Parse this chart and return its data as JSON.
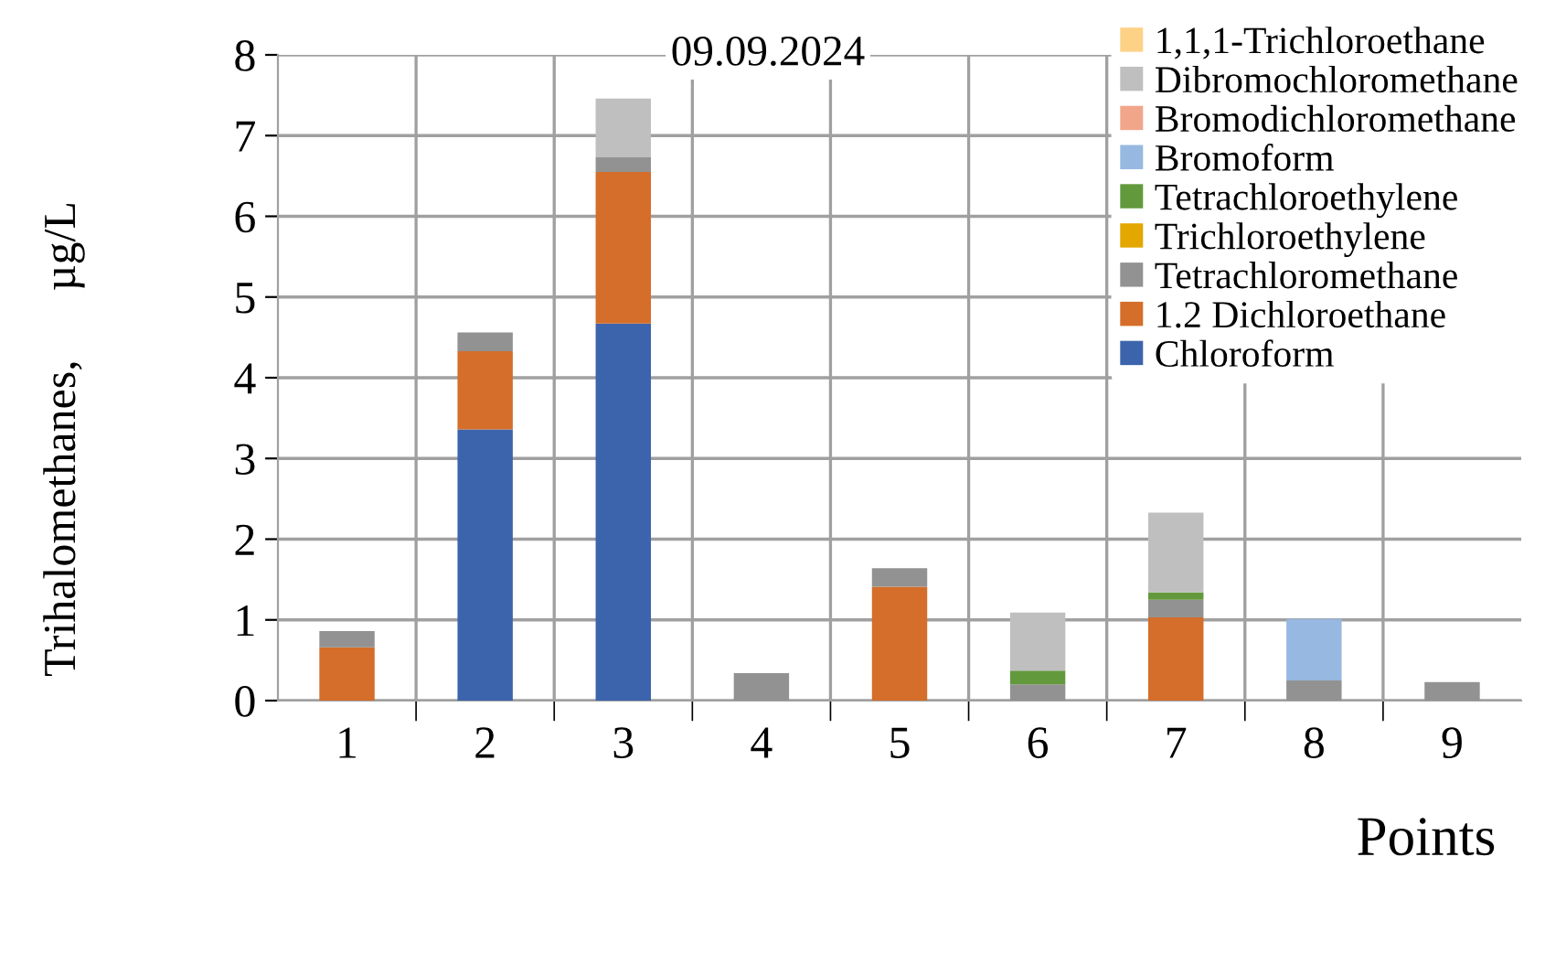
{
  "chart_data": {
    "type": "bar",
    "stacked": true,
    "categories": [
      "1",
      "2",
      "3",
      "4",
      "5",
      "6",
      "7",
      "8",
      "9"
    ],
    "series": [
      {
        "name": "Chloroform",
        "color": "#3c64ac",
        "values": [
          null,
          3.36,
          4.67,
          null,
          null,
          null,
          null,
          null,
          null
        ]
      },
      {
        "name": "1.2 Dichloroethane",
        "color": "#d46e2a",
        "values": [
          0.66,
          0.97,
          1.88,
          null,
          1.41,
          null,
          1.03,
          null,
          null
        ]
      },
      {
        "name": "Tetrachloromethane",
        "color": "#929292",
        "values": [
          0.2,
          0.23,
          0.18,
          0.34,
          0.23,
          0.2,
          0.22,
          0.25,
          0.23
        ]
      },
      {
        "name": "Trichloroethylene",
        "color": "#e3a700",
        "values": [
          null,
          null,
          null,
          null,
          null,
          null,
          null,
          null,
          null
        ]
      },
      {
        "name": "Tetrachloroethylene",
        "color": "#63993d",
        "values": [
          null,
          null,
          null,
          null,
          null,
          0.17,
          0.09,
          null,
          null
        ]
      },
      {
        "name": "Bromoform",
        "color": "#97b8e0",
        "values": [
          null,
          null,
          null,
          null,
          null,
          null,
          null,
          0.76,
          null
        ]
      },
      {
        "name": "Bromodichloromethane",
        "color": "#f1a68a",
        "values": [
          null,
          null,
          null,
          null,
          null,
          null,
          null,
          null,
          null
        ]
      },
      {
        "name": "Dibromochloromethane",
        "color": "#bfbfbf",
        "values": [
          null,
          null,
          0.73,
          null,
          null,
          0.72,
          0.99,
          null,
          null
        ]
      },
      {
        "name": "1,1,1-Trichloroethane",
        "color": "#fdd287",
        "values": [
          null,
          null,
          null,
          null,
          null,
          null,
          null,
          null,
          null
        ]
      }
    ],
    "ylim": [
      0,
      8
    ],
    "yticks": [
      0,
      1,
      2,
      3,
      4,
      5,
      6,
      7,
      8
    ],
    "ylabel": "Trihalomethanes,      µg/L",
    "xlabel": "Points",
    "annotations": [
      "09.09.2024"
    ],
    "grid": true,
    "legend": "top right"
  }
}
